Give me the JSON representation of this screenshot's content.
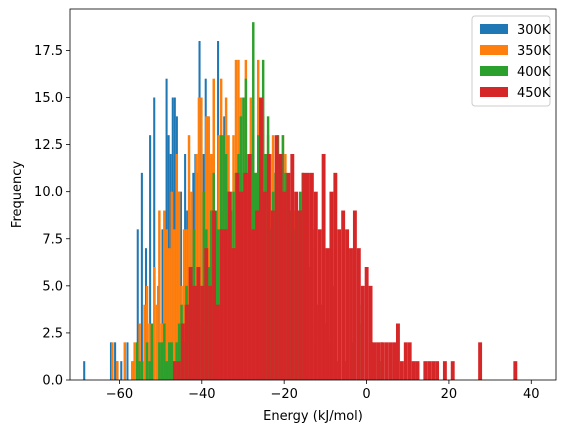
{
  "chart_data": {
    "type": "histogram",
    "xlabel": "Energy (kJ/mol)",
    "ylabel": "Frequency",
    "xlim": [
      -72,
      46
    ],
    "ylim": [
      0,
      19.7
    ],
    "grid": false,
    "legend": "top-right",
    "x_ticks": [
      -60,
      -40,
      -20,
      0,
      20,
      40
    ],
    "x_tick_labels": [
      "−60",
      "−40",
      "−20",
      "0",
      "20",
      "40"
    ],
    "y_ticks": [
      0,
      2.5,
      5,
      7.5,
      10,
      12.5,
      15,
      17.5
    ],
    "y_tick_labels": [
      "0.0",
      "2.5",
      "5.0",
      "7.5",
      "10.0",
      "12.5",
      "15.0",
      "17.5"
    ],
    "series": [
      {
        "name": "300K",
        "color": "#1f77b4",
        "x_start": -68.8,
        "bin_width": 0.5,
        "counts": [
          1,
          0,
          0,
          0,
          0,
          0,
          0,
          0,
          0,
          0,
          0,
          0,
          0,
          2,
          0,
          2,
          1,
          0,
          1,
          0,
          0,
          2,
          0,
          0,
          1,
          0,
          8,
          0,
          11,
          0,
          7,
          0,
          13,
          2,
          15,
          0,
          5,
          1,
          8,
          2,
          16,
          13,
          12,
          15,
          15,
          14,
          10,
          10,
          3,
          12,
          9,
          8,
          9,
          11,
          12,
          11,
          18,
          6,
          12,
          16,
          14,
          11,
          8,
          12,
          6,
          18,
          2,
          9,
          14,
          13,
          12,
          7,
          7,
          7,
          4,
          4,
          9,
          3,
          5,
          4,
          2,
          3,
          2,
          1,
          0,
          3,
          1,
          1,
          0,
          1,
          0,
          1,
          0,
          1
        ]
      },
      {
        "name": "350K",
        "color": "#ff7f0e",
        "x_start": -62.0,
        "bin_width": 0.6,
        "counts": [
          2,
          0,
          1,
          0,
          0,
          2,
          0,
          0,
          1,
          2,
          1,
          3,
          0,
          4,
          5,
          3,
          0,
          6,
          4,
          9,
          3,
          9,
          8,
          7,
          10,
          8,
          12,
          10,
          5,
          8,
          8,
          13,
          10,
          4,
          12,
          15,
          15,
          6,
          14,
          14,
          12,
          16,
          7,
          13,
          16,
          9,
          15,
          13,
          10,
          13,
          17,
          17,
          15,
          11,
          17,
          10,
          15,
          13,
          11,
          17,
          13,
          14,
          12,
          13,
          12,
          13,
          10,
          10,
          12,
          13,
          12,
          7,
          8,
          5,
          9,
          5,
          6,
          3,
          5,
          4,
          4,
          2,
          3,
          3,
          1,
          1,
          1
        ]
      },
      {
        "name": "400K",
        "color": "#2ca02c",
        "x_start": -56.0,
        "bin_width": 0.6,
        "counts": [
          2,
          1,
          1,
          0,
          2,
          1,
          3,
          0,
          0,
          2,
          2,
          3,
          1,
          2,
          2,
          1,
          2,
          3,
          4,
          2,
          5,
          4,
          6,
          8,
          5,
          6,
          3,
          10,
          8,
          6,
          9,
          11,
          9,
          8,
          13,
          13,
          12,
          10,
          9,
          10,
          11,
          12,
          14,
          15,
          16,
          11,
          12,
          19,
          11,
          13,
          14,
          17,
          12,
          14,
          8,
          10,
          11,
          13,
          12,
          13,
          11,
          10,
          9,
          8,
          8,
          9,
          10,
          11,
          7,
          9,
          6,
          8,
          7,
          4,
          6,
          4,
          3,
          3,
          2,
          5,
          4,
          1,
          1,
          0,
          1,
          3,
          0,
          2,
          1,
          0,
          3,
          4,
          0,
          0,
          0,
          2,
          0,
          0,
          1,
          2
        ]
      },
      {
        "name": "450K",
        "color": "#d62728",
        "x_start": -47.0,
        "bin_width": 0.95,
        "counts": [
          1,
          1,
          3,
          4,
          6,
          5,
          6,
          5,
          7,
          5,
          9,
          4,
          8,
          8,
          10,
          7,
          11,
          10,
          11,
          12,
          8,
          9,
          15,
          10,
          12,
          9,
          13,
          12,
          10,
          11,
          12,
          10,
          9,
          11,
          11,
          11,
          10,
          8,
          12,
          7,
          10,
          11,
          8,
          9,
          8,
          7,
          9,
          7,
          5,
          6,
          5,
          2,
          2,
          2,
          2,
          2,
          2,
          3,
          1,
          2,
          2,
          1,
          1,
          0,
          1,
          1,
          1,
          1,
          0,
          1,
          0,
          1,
          0,
          0,
          0,
          0,
          0,
          0,
          2,
          0,
          0,
          0,
          0,
          0,
          0,
          0,
          0,
          1
        ]
      }
    ]
  }
}
